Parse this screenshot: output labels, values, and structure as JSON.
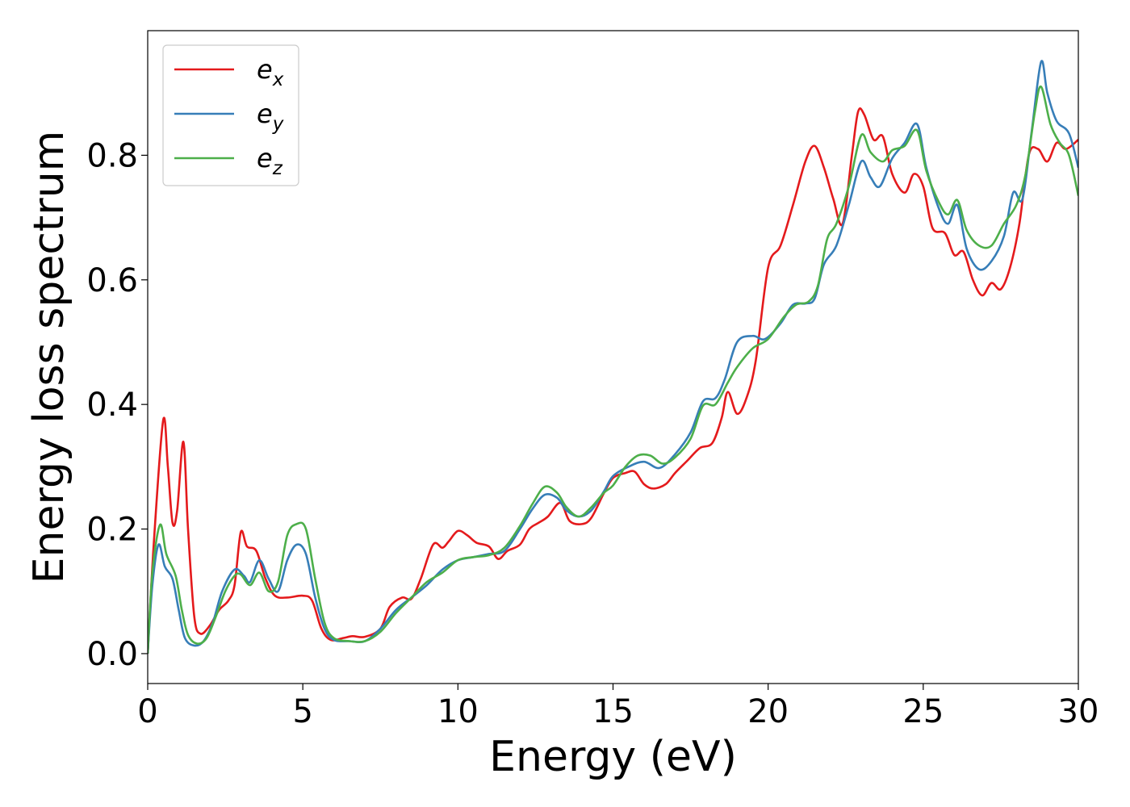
{
  "chart_data": {
    "type": "line",
    "title": "",
    "xlabel": "Energy (eV)",
    "ylabel": "Energy loss spectrum",
    "xlim": [
      0,
      30
    ],
    "ylim": [
      -0.048,
      1.0
    ],
    "xticks": [
      0,
      5,
      10,
      15,
      20,
      25,
      30
    ],
    "xtick_labels": [
      "0",
      "5",
      "10",
      "15",
      "20",
      "25",
      "30"
    ],
    "yticks": [
      0.0,
      0.2,
      0.4,
      0.6,
      0.8
    ],
    "ytick_labels": [
      "0.0",
      "0.2",
      "0.4",
      "0.6",
      "0.8"
    ],
    "grid": false,
    "legend_position": "top-left",
    "series": [
      {
        "name": "e",
        "subscript": "x",
        "color": "#e41a1c",
        "points": [
          [
            0,
            0.0
          ],
          [
            0.2,
            0.18
          ],
          [
            0.5,
            0.375
          ],
          [
            0.65,
            0.3
          ],
          [
            0.8,
            0.21
          ],
          [
            0.95,
            0.23
          ],
          [
            1.15,
            0.34
          ],
          [
            1.3,
            0.2
          ],
          [
            1.5,
            0.06
          ],
          [
            1.7,
            0.032
          ],
          [
            2.0,
            0.045
          ],
          [
            2.3,
            0.07
          ],
          [
            2.6,
            0.085
          ],
          [
            2.8,
            0.11
          ],
          [
            3.0,
            0.195
          ],
          [
            3.2,
            0.172
          ],
          [
            3.5,
            0.165
          ],
          [
            3.8,
            0.12
          ],
          [
            4.1,
            0.093
          ],
          [
            4.5,
            0.09
          ],
          [
            5.0,
            0.093
          ],
          [
            5.3,
            0.085
          ],
          [
            5.6,
            0.04
          ],
          [
            5.9,
            0.022
          ],
          [
            6.3,
            0.025
          ],
          [
            6.6,
            0.028
          ],
          [
            7.0,
            0.027
          ],
          [
            7.5,
            0.04
          ],
          [
            7.8,
            0.075
          ],
          [
            8.2,
            0.09
          ],
          [
            8.5,
            0.088
          ],
          [
            8.8,
            0.12
          ],
          [
            9.2,
            0.175
          ],
          [
            9.5,
            0.17
          ],
          [
            9.7,
            0.18
          ],
          [
            10.0,
            0.197
          ],
          [
            10.3,
            0.19
          ],
          [
            10.6,
            0.178
          ],
          [
            11.0,
            0.172
          ],
          [
            11.3,
            0.152
          ],
          [
            11.6,
            0.165
          ],
          [
            12.0,
            0.175
          ],
          [
            12.3,
            0.2
          ],
          [
            12.6,
            0.21
          ],
          [
            12.9,
            0.22
          ],
          [
            13.3,
            0.242
          ],
          [
            13.6,
            0.213
          ],
          [
            14.0,
            0.208
          ],
          [
            14.3,
            0.218
          ],
          [
            14.7,
            0.257
          ],
          [
            15.0,
            0.282
          ],
          [
            15.4,
            0.29
          ],
          [
            15.7,
            0.292
          ],
          [
            16.0,
            0.272
          ],
          [
            16.3,
            0.265
          ],
          [
            16.7,
            0.272
          ],
          [
            17.0,
            0.29
          ],
          [
            17.4,
            0.31
          ],
          [
            17.8,
            0.33
          ],
          [
            18.2,
            0.338
          ],
          [
            18.5,
            0.378
          ],
          [
            18.7,
            0.42
          ],
          [
            19.0,
            0.385
          ],
          [
            19.3,
            0.41
          ],
          [
            19.6,
            0.47
          ],
          [
            20.0,
            0.62
          ],
          [
            20.4,
            0.655
          ],
          [
            20.8,
            0.72
          ],
          [
            21.2,
            0.79
          ],
          [
            21.5,
            0.815
          ],
          [
            21.8,
            0.78
          ],
          [
            22.1,
            0.73
          ],
          [
            22.4,
            0.69
          ],
          [
            22.7,
            0.8
          ],
          [
            22.9,
            0.87
          ],
          [
            23.1,
            0.865
          ],
          [
            23.4,
            0.825
          ],
          [
            23.7,
            0.83
          ],
          [
            24.0,
            0.77
          ],
          [
            24.4,
            0.74
          ],
          [
            24.7,
            0.77
          ],
          [
            25.0,
            0.75
          ],
          [
            25.3,
            0.683
          ],
          [
            25.7,
            0.675
          ],
          [
            26.0,
            0.64
          ],
          [
            26.3,
            0.645
          ],
          [
            26.6,
            0.6
          ],
          [
            26.9,
            0.575
          ],
          [
            27.2,
            0.595
          ],
          [
            27.5,
            0.585
          ],
          [
            27.8,
            0.62
          ],
          [
            28.1,
            0.69
          ],
          [
            28.4,
            0.8
          ],
          [
            28.7,
            0.81
          ],
          [
            29.0,
            0.79
          ],
          [
            29.3,
            0.82
          ],
          [
            29.6,
            0.81
          ],
          [
            30.0,
            0.825
          ]
        ]
      },
      {
        "name": "e",
        "subscript": "y",
        "color": "#377eb8",
        "points": [
          [
            0,
            0.0
          ],
          [
            0.15,
            0.11
          ],
          [
            0.35,
            0.175
          ],
          [
            0.55,
            0.14
          ],
          [
            0.8,
            0.12
          ],
          [
            1.0,
            0.07
          ],
          [
            1.2,
            0.025
          ],
          [
            1.5,
            0.013
          ],
          [
            1.8,
            0.02
          ],
          [
            2.1,
            0.05
          ],
          [
            2.4,
            0.1
          ],
          [
            2.8,
            0.135
          ],
          [
            3.1,
            0.125
          ],
          [
            3.3,
            0.115
          ],
          [
            3.6,
            0.15
          ],
          [
            3.9,
            0.12
          ],
          [
            4.2,
            0.1
          ],
          [
            4.5,
            0.15
          ],
          [
            4.8,
            0.175
          ],
          [
            5.1,
            0.16
          ],
          [
            5.4,
            0.09
          ],
          [
            5.7,
            0.04
          ],
          [
            6.0,
            0.022
          ],
          [
            6.5,
            0.02
          ],
          [
            7.0,
            0.02
          ],
          [
            7.5,
            0.04
          ],
          [
            8.0,
            0.07
          ],
          [
            8.5,
            0.09
          ],
          [
            9.0,
            0.11
          ],
          [
            9.5,
            0.135
          ],
          [
            10.0,
            0.15
          ],
          [
            10.5,
            0.155
          ],
          [
            11.0,
            0.16
          ],
          [
            11.5,
            0.165
          ],
          [
            12.0,
            0.2
          ],
          [
            12.4,
            0.232
          ],
          [
            12.8,
            0.255
          ],
          [
            13.2,
            0.25
          ],
          [
            13.5,
            0.23
          ],
          [
            13.9,
            0.22
          ],
          [
            14.3,
            0.23
          ],
          [
            14.7,
            0.26
          ],
          [
            15.0,
            0.285
          ],
          [
            15.5,
            0.3
          ],
          [
            16.0,
            0.308
          ],
          [
            16.5,
            0.298
          ],
          [
            17.0,
            0.32
          ],
          [
            17.5,
            0.355
          ],
          [
            17.9,
            0.405
          ],
          [
            18.3,
            0.41
          ],
          [
            18.6,
            0.44
          ],
          [
            19.0,
            0.5
          ],
          [
            19.5,
            0.51
          ],
          [
            19.9,
            0.505
          ],
          [
            20.4,
            0.53
          ],
          [
            20.8,
            0.56
          ],
          [
            21.2,
            0.562
          ],
          [
            21.5,
            0.57
          ],
          [
            21.8,
            0.625
          ],
          [
            22.2,
            0.655
          ],
          [
            22.6,
            0.72
          ],
          [
            23.0,
            0.79
          ],
          [
            23.3,
            0.765
          ],
          [
            23.6,
            0.75
          ],
          [
            24.0,
            0.795
          ],
          [
            24.4,
            0.82
          ],
          [
            24.8,
            0.85
          ],
          [
            25.1,
            0.78
          ],
          [
            25.5,
            0.715
          ],
          [
            25.8,
            0.69
          ],
          [
            26.1,
            0.72
          ],
          [
            26.4,
            0.65
          ],
          [
            26.8,
            0.617
          ],
          [
            27.2,
            0.63
          ],
          [
            27.6,
            0.67
          ],
          [
            27.9,
            0.74
          ],
          [
            28.2,
            0.73
          ],
          [
            28.5,
            0.84
          ],
          [
            28.8,
            0.95
          ],
          [
            29.0,
            0.9
          ],
          [
            29.3,
            0.855
          ],
          [
            29.7,
            0.835
          ],
          [
            30.0,
            0.78
          ]
        ]
      },
      {
        "name": "e",
        "subscript": "z",
        "color": "#4daf4a",
        "points": [
          [
            0,
            0.0
          ],
          [
            0.15,
            0.13
          ],
          [
            0.4,
            0.207
          ],
          [
            0.6,
            0.16
          ],
          [
            0.9,
            0.125
          ],
          [
            1.1,
            0.07
          ],
          [
            1.3,
            0.03
          ],
          [
            1.6,
            0.016
          ],
          [
            1.9,
            0.025
          ],
          [
            2.2,
            0.06
          ],
          [
            2.5,
            0.1
          ],
          [
            2.8,
            0.125
          ],
          [
            3.0,
            0.127
          ],
          [
            3.3,
            0.11
          ],
          [
            3.6,
            0.13
          ],
          [
            3.9,
            0.1
          ],
          [
            4.2,
            0.115
          ],
          [
            4.5,
            0.19
          ],
          [
            4.8,
            0.208
          ],
          [
            5.1,
            0.2
          ],
          [
            5.4,
            0.12
          ],
          [
            5.7,
            0.05
          ],
          [
            6.0,
            0.025
          ],
          [
            6.5,
            0.02
          ],
          [
            7.0,
            0.02
          ],
          [
            7.5,
            0.035
          ],
          [
            8.0,
            0.065
          ],
          [
            8.5,
            0.09
          ],
          [
            9.0,
            0.115
          ],
          [
            9.5,
            0.13
          ],
          [
            10.0,
            0.15
          ],
          [
            10.5,
            0.155
          ],
          [
            11.0,
            0.158
          ],
          [
            11.5,
            0.17
          ],
          [
            12.0,
            0.205
          ],
          [
            12.4,
            0.24
          ],
          [
            12.8,
            0.268
          ],
          [
            13.2,
            0.258
          ],
          [
            13.5,
            0.235
          ],
          [
            13.9,
            0.22
          ],
          [
            14.3,
            0.235
          ],
          [
            14.7,
            0.258
          ],
          [
            15.0,
            0.27
          ],
          [
            15.4,
            0.3
          ],
          [
            15.8,
            0.318
          ],
          [
            16.2,
            0.318
          ],
          [
            16.6,
            0.305
          ],
          [
            17.0,
            0.315
          ],
          [
            17.5,
            0.345
          ],
          [
            17.9,
            0.398
          ],
          [
            18.3,
            0.4
          ],
          [
            18.7,
            0.435
          ],
          [
            19.0,
            0.46
          ],
          [
            19.5,
            0.49
          ],
          [
            20.0,
            0.505
          ],
          [
            20.5,
            0.54
          ],
          [
            20.9,
            0.56
          ],
          [
            21.3,
            0.565
          ],
          [
            21.6,
            0.59
          ],
          [
            21.9,
            0.665
          ],
          [
            22.2,
            0.69
          ],
          [
            22.6,
            0.75
          ],
          [
            23.0,
            0.832
          ],
          [
            23.3,
            0.805
          ],
          [
            23.7,
            0.79
          ],
          [
            24.0,
            0.808
          ],
          [
            24.4,
            0.815
          ],
          [
            24.8,
            0.84
          ],
          [
            25.1,
            0.775
          ],
          [
            25.5,
            0.725
          ],
          [
            25.8,
            0.705
          ],
          [
            26.1,
            0.728
          ],
          [
            26.4,
            0.68
          ],
          [
            26.8,
            0.655
          ],
          [
            27.2,
            0.655
          ],
          [
            27.6,
            0.69
          ],
          [
            28.0,
            0.72
          ],
          [
            28.3,
            0.77
          ],
          [
            28.6,
            0.87
          ],
          [
            28.8,
            0.91
          ],
          [
            29.1,
            0.85
          ],
          [
            29.4,
            0.82
          ],
          [
            29.7,
            0.8
          ],
          [
            30.0,
            0.735
          ]
        ]
      }
    ]
  }
}
